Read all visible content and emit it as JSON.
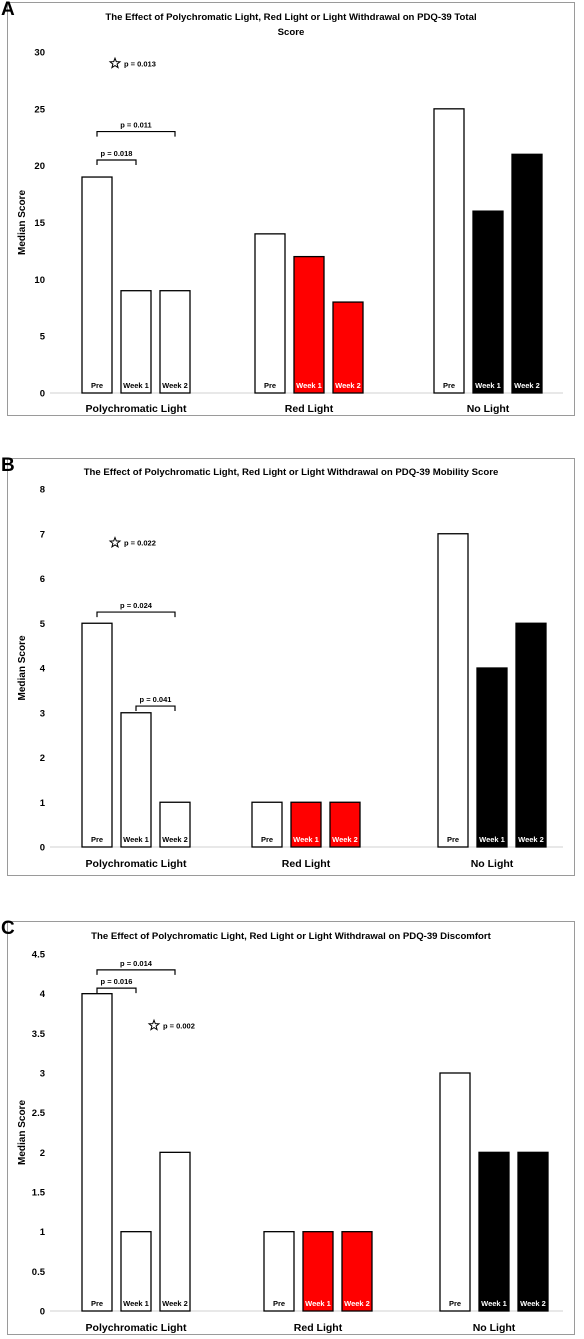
{
  "chart_data": [
    {
      "type": "bar",
      "panel_label": "A",
      "title_lines": [
        "The Effect of Polychromatic Light, Red Light or Light Withdrawal on PDQ-39 Total",
        "Score"
      ],
      "ylabel": "Median Score",
      "ylim": [
        0,
        30
      ],
      "yticks": [
        "0",
        "5",
        "10",
        "15",
        "20",
        "25",
        "30"
      ],
      "ytick_values": [
        0,
        5,
        10,
        15,
        20,
        25,
        30
      ],
      "groups": [
        {
          "label": "Polychromatic Light",
          "bars": [
            {
              "label": "Pre",
              "value": 19,
              "color": "#ffffff"
            },
            {
              "label": "Week 1",
              "value": 9,
              "color": "#ffffff"
            },
            {
              "label": "Week 2",
              "value": 9,
              "color": "#ffffff"
            }
          ]
        },
        {
          "label": "Red Light",
          "bars": [
            {
              "label": "Pre",
              "value": 14,
              "color": "#ffffff"
            },
            {
              "label": "Week 1",
              "value": 12,
              "color": "#ff0000"
            },
            {
              "label": "Week 2",
              "value": 8,
              "color": "#ff0000"
            }
          ]
        },
        {
          "label": "No Light",
          "bars": [
            {
              "label": "Pre",
              "value": 25,
              "color": "#ffffff"
            },
            {
              "label": "Week 1",
              "value": 16,
              "color": "#000000"
            },
            {
              "label": "Week 2",
              "value": 21,
              "color": "#000000"
            }
          ]
        }
      ],
      "annotations": [
        {
          "kind": "star",
          "text": "p = 0.013",
          "group": 0,
          "bar_from": 0,
          "value": 29
        },
        {
          "kind": "bracket",
          "text": "p = 0.011",
          "group": 0,
          "bar_from": 0,
          "bar_to": 2,
          "value": 23
        },
        {
          "kind": "bracket",
          "text": "p = 0.018",
          "group": 0,
          "bar_from": 0,
          "bar_to": 1,
          "value": 20.5
        }
      ]
    },
    {
      "type": "bar",
      "panel_label": "B",
      "title_lines": [
        "The Effect of Polychromatic Light, Red Light or Light Withdrawal on PDQ-39 Mobility Score"
      ],
      "ylabel": "Median Score",
      "ylim": [
        0,
        8
      ],
      "yticks": [
        "0",
        "1",
        "2",
        "3",
        "4",
        "5",
        "6",
        "7",
        "8"
      ],
      "ytick_values": [
        0,
        1,
        2,
        3,
        4,
        5,
        6,
        7,
        8
      ],
      "groups": [
        {
          "label": "Polychromatic Light",
          "bars": [
            {
              "label": "Pre",
              "value": 5,
              "color": "#ffffff"
            },
            {
              "label": "Week 1",
              "value": 3,
              "color": "#ffffff"
            },
            {
              "label": "Week 2",
              "value": 1,
              "color": "#ffffff"
            }
          ]
        },
        {
          "label": "Red Light",
          "bars": [
            {
              "label": "Pre",
              "value": 1,
              "color": "#ffffff"
            },
            {
              "label": "Week 1",
              "value": 1,
              "color": "#ff0000"
            },
            {
              "label": "Week 2",
              "value": 1,
              "color": "#ff0000"
            }
          ]
        },
        {
          "label": "No Light",
          "bars": [
            {
              "label": "Pre",
              "value": 7,
              "color": "#ffffff"
            },
            {
              "label": "Week 1",
              "value": 4,
              "color": "#000000"
            },
            {
              "label": "Week 2",
              "value": 5,
              "color": "#000000"
            }
          ]
        }
      ],
      "annotations": [
        {
          "kind": "star",
          "text": "p = 0.022",
          "group": 0,
          "bar_from": 0,
          "value": 6.8
        },
        {
          "kind": "bracket",
          "text": "p = 0.024",
          "group": 0,
          "bar_from": 0,
          "bar_to": 2,
          "value": 5.25
        },
        {
          "kind": "bracket",
          "text": "p = 0.041",
          "group": 0,
          "bar_from": 1,
          "bar_to": 2,
          "value": 3.15
        }
      ]
    },
    {
      "type": "bar",
      "panel_label": "C",
      "title_lines": [
        "The Effect of Polychromatic Light, Red Light or Light Withdrawal on PDQ-39 Discomfort"
      ],
      "ylabel": "Median Score",
      "ylim": [
        0,
        4.5
      ],
      "yticks": [
        "0",
        "0.5",
        "1",
        "1.5",
        "2",
        "2.5",
        "3",
        "3.5",
        "4",
        "4.5"
      ],
      "ytick_values": [
        0,
        0.5,
        1,
        1.5,
        2,
        2.5,
        3,
        3.5,
        4,
        4.5
      ],
      "groups": [
        {
          "label": "Polychromatic Light",
          "bars": [
            {
              "label": "Pre",
              "value": 4,
              "color": "#ffffff"
            },
            {
              "label": "Week 1",
              "value": 1,
              "color": "#ffffff"
            },
            {
              "label": "Week 2",
              "value": 2,
              "color": "#ffffff"
            }
          ]
        },
        {
          "label": "Red Light",
          "bars": [
            {
              "label": "Pre",
              "value": 1,
              "color": "#ffffff"
            },
            {
              "label": "Week 1",
              "value": 1,
              "color": "#ff0000"
            },
            {
              "label": "Week 2",
              "value": 1,
              "color": "#ff0000"
            }
          ]
        },
        {
          "label": "No Light",
          "bars": [
            {
              "label": "Pre",
              "value": 3,
              "color": "#ffffff"
            },
            {
              "label": "Week 1",
              "value": 2,
              "color": "#000000"
            },
            {
              "label": "Week 2",
              "value": 2,
              "color": "#000000"
            }
          ]
        }
      ],
      "annotations": [
        {
          "kind": "bracket",
          "text": "p = 0.014",
          "group": 0,
          "bar_from": 0,
          "bar_to": 2,
          "value": 4.3
        },
        {
          "kind": "bracket",
          "text": "p = 0.016",
          "group": 0,
          "bar_from": 0,
          "bar_to": 1,
          "value": 4.07
        },
        {
          "kind": "star",
          "text": "p = 0.002",
          "group": 0,
          "bar_from": 1,
          "value": 3.6
        }
      ]
    }
  ]
}
